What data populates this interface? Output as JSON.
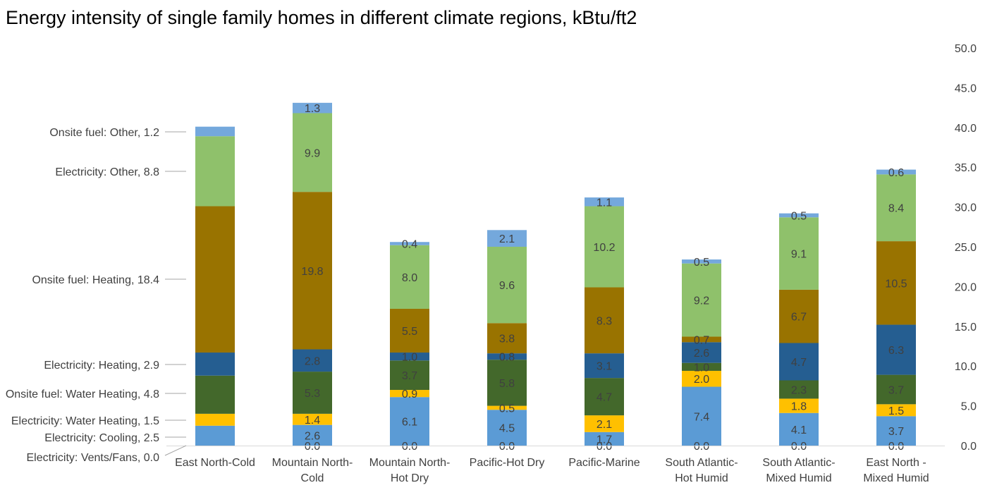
{
  "chart_data": {
    "type": "bar",
    "stacked": true,
    "title": "Energy intensity of single family homes in different climate regions, kBtu/ft2",
    "xlabel": "",
    "ylabel": "",
    "ylim": [
      0,
      50
    ],
    "ytick_step": 5,
    "ytick_labels": [
      "0.0",
      "5.0",
      "10.0",
      "15.0",
      "20.0",
      "25.0",
      "30.0",
      "35.0",
      "40.0",
      "45.0",
      "50.0"
    ],
    "y_axis_side": "right",
    "grid": false,
    "legend": "none",
    "categories": [
      "East North-Cold",
      "Mountain North-Cold",
      "Mountain North-Hot Dry",
      "Pacific-Hot Dry",
      "Pacific-Marine",
      "South Atlantic-Hot Humid",
      "South Atlantic-Mixed Humid",
      "East North - Mixed Humid"
    ],
    "category_lines": [
      [
        "East North-Cold"
      ],
      [
        "Mountain North-",
        "Cold"
      ],
      [
        "Mountain North-",
        "Hot Dry"
      ],
      [
        "Pacific-Hot Dry"
      ],
      [
        "Pacific-Marine"
      ],
      [
        "South Atlantic-",
        "Hot Humid"
      ],
      [
        "South Atlantic-",
        "Mixed Humid"
      ],
      [
        "East North -",
        "Mixed Humid"
      ]
    ],
    "series": [
      {
        "name": "Electricity: Vents/Fans",
        "color": "#5b9bd5",
        "values": [
          0.0,
          0.0,
          0.0,
          0.0,
          0.0,
          0.0,
          0.0,
          0.0
        ],
        "labels": [
          null,
          "0.0",
          "0.0",
          "0.0",
          "0.0",
          "0.0",
          "0.0",
          "0.0"
        ]
      },
      {
        "name": "Electricity: Cooling",
        "color": "#5b9bd5",
        "values": [
          2.5,
          2.6,
          6.1,
          4.5,
          1.7,
          7.4,
          4.1,
          3.7
        ],
        "labels": [
          null,
          "2.6",
          "6.1",
          "4.5",
          "1.7",
          "7.4",
          "4.1",
          "3.7"
        ]
      },
      {
        "name": "Electricity: Water Heating",
        "color": "#ffc000",
        "values": [
          1.5,
          1.4,
          0.9,
          0.5,
          2.1,
          2.0,
          1.8,
          1.5
        ],
        "labels": [
          null,
          "1.4",
          "0.9",
          "0.5",
          "2.1",
          "2.0",
          "1.8",
          "1.5"
        ]
      },
      {
        "name": "Onsite fuel: Water Heating",
        "color": "#43682b",
        "values": [
          4.8,
          5.3,
          3.7,
          5.8,
          4.7,
          1.0,
          2.3,
          3.7
        ],
        "labels": [
          null,
          "5.3",
          "3.7",
          "5.8",
          "4.7",
          "1.0",
          "2.3",
          "3.7"
        ]
      },
      {
        "name": "Electricity: Heating",
        "color": "#255e91",
        "values": [
          2.9,
          2.8,
          1.0,
          0.8,
          3.1,
          2.6,
          4.7,
          6.3
        ],
        "labels": [
          null,
          "2.8",
          "1.0",
          "0.8",
          "3.1",
          "2.6",
          "4.7",
          "6.3"
        ]
      },
      {
        "name": "Onsite fuel: Heating",
        "color": "#997300",
        "values": [
          18.4,
          19.8,
          5.5,
          3.8,
          8.3,
          0.7,
          6.7,
          10.5
        ],
        "labels": [
          null,
          "19.8",
          "5.5",
          "3.8",
          "8.3",
          "0.7",
          "6.7",
          "10.5"
        ]
      },
      {
        "name": "Electricity: Other",
        "color": "#8fc16b",
        "values": [
          8.8,
          9.9,
          8.0,
          9.6,
          10.2,
          9.2,
          9.1,
          8.4
        ],
        "labels": [
          null,
          "9.9",
          "8.0",
          "9.6",
          "10.2",
          "9.2",
          "9.1",
          "8.4"
        ]
      },
      {
        "name": "Onsite fuel: Other",
        "color": "#74a8dc",
        "values": [
          1.2,
          1.3,
          0.4,
          2.1,
          1.1,
          0.5,
          0.5,
          0.6
        ],
        "labels": [
          null,
          "1.3",
          "0.4",
          "2.1",
          "1.1",
          "0.5",
          "0.5",
          "0.6"
        ]
      }
    ],
    "callouts": [
      {
        "text": "Onsite fuel: Other, 1.2"
      },
      {
        "text": "Electricity: Other, 8.8"
      },
      {
        "text": "Onsite fuel: Heating, 18.4"
      },
      {
        "text": "Electricity: Heating, 2.9"
      },
      {
        "text": "Onsite fuel: Water Heating, 4.8"
      },
      {
        "text": "Electricity: Water Heating, 1.5"
      },
      {
        "text": "Electricity: Cooling, 2.5"
      },
      {
        "text": "Electricity: Vents/Fans, 0.0"
      }
    ]
  }
}
